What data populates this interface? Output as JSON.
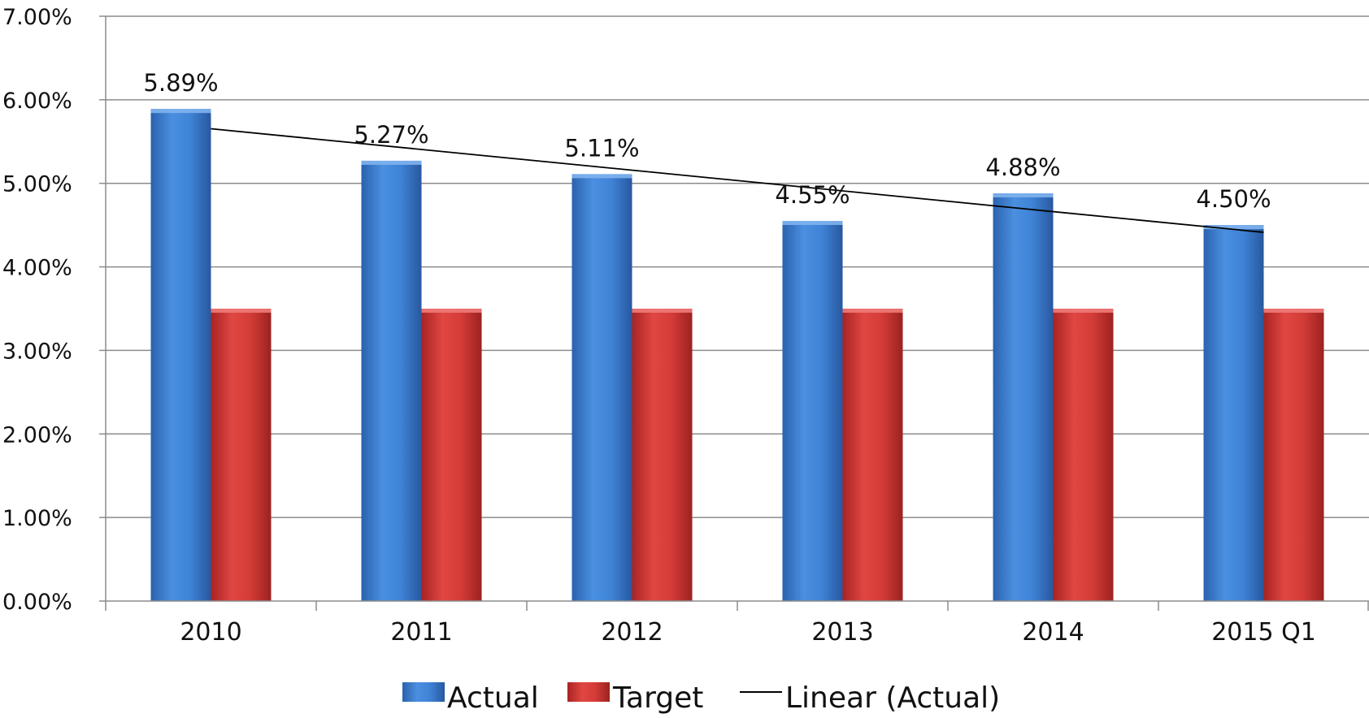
{
  "chart_data": {
    "type": "bar",
    "title": "",
    "xlabel": "",
    "ylabel": "",
    "categories": [
      "2010",
      "2011",
      "2012",
      "2013",
      "2014",
      "2015 Q1"
    ],
    "series": [
      {
        "name": "Actual",
        "values": [
          5.89,
          5.27,
          5.11,
          4.55,
          4.88,
          4.5
        ],
        "color": "#3d7fd4"
      },
      {
        "name": "Target",
        "values": [
          3.5,
          3.5,
          3.5,
          3.5,
          3.5,
          3.5
        ],
        "color": "#d23a37"
      }
    ],
    "data_labels": [
      "5.89%",
      "5.27%",
      "5.11%",
      "4.55%",
      "4.88%",
      "4.50%"
    ],
    "trendline": {
      "name": "Linear (Actual)",
      "of_series": "Actual",
      "type": "linear",
      "color": "#000000"
    },
    "ylim": [
      0,
      7
    ],
    "yticks": [
      0,
      1,
      2,
      3,
      4,
      5,
      6,
      7
    ],
    "ytick_labels": [
      "0.00%",
      "1.00%",
      "2.00%",
      "3.00%",
      "4.00%",
      "5.00%",
      "6.00%",
      "7.00%"
    ],
    "grid": true,
    "legend": {
      "position": "bottom",
      "entries": [
        "Actual",
        "Target",
        "Linear (Actual)"
      ]
    }
  }
}
